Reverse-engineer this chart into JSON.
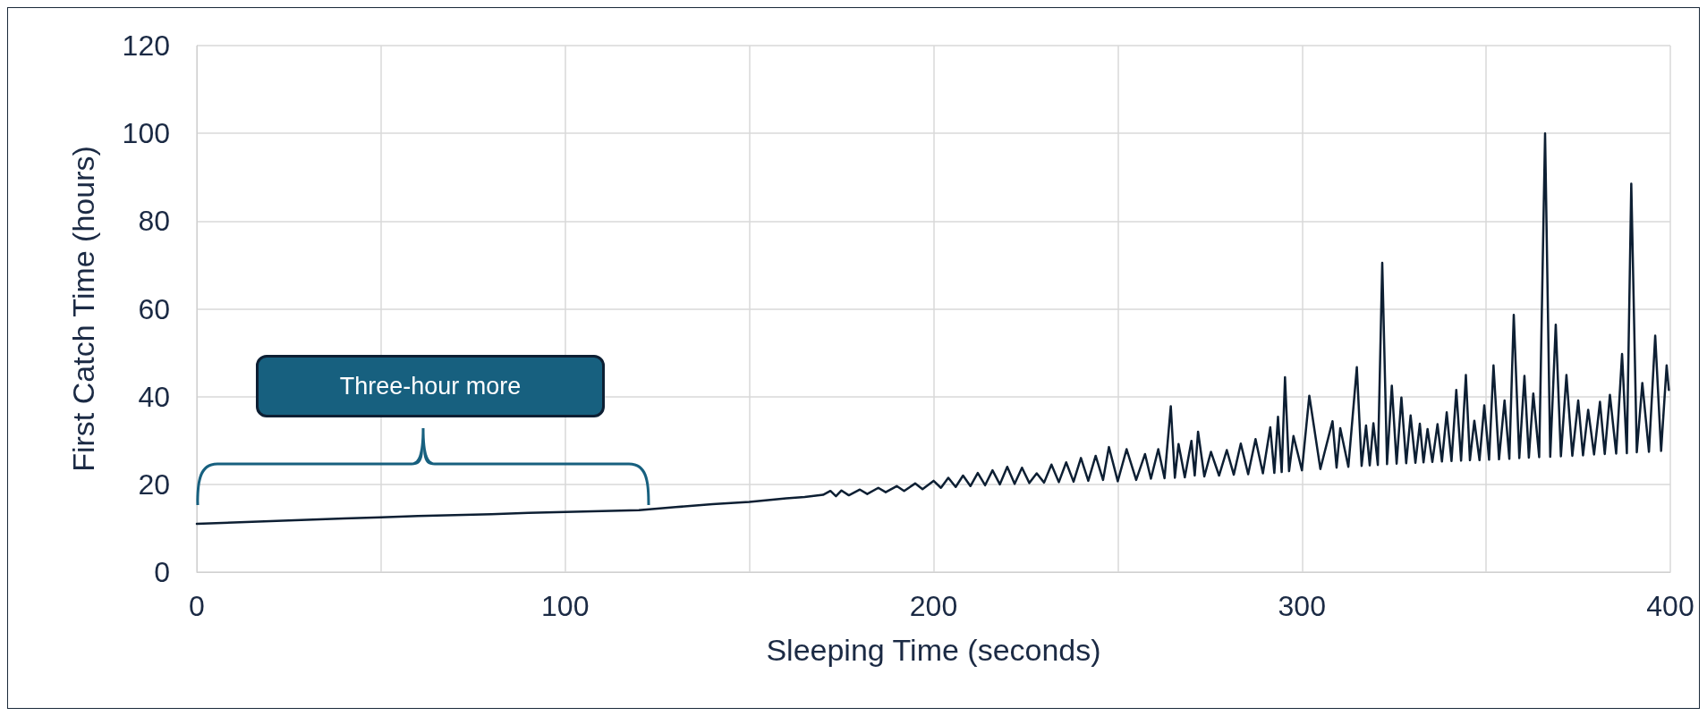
{
  "chart_data": {
    "type": "line",
    "xlabel": "Sleeping Time (seconds)",
    "ylabel": "First Catch Time (hours)",
    "xlim": [
      0,
      400
    ],
    "xticks": [
      0,
      {
        "value": 50,
        "label": null
      },
      100,
      {
        "value": 150,
        "label": null
      },
      200,
      {
        "value": 250,
        "label": null
      },
      300,
      {
        "value": 350,
        "label": null
      },
      400
    ],
    "ylim": [
      0,
      120
    ],
    "yticks": [
      0,
      20,
      40,
      60,
      80,
      100,
      120
    ],
    "grid": true,
    "marker": "none",
    "line_style": "solid",
    "annotations": [
      "Three-hour more"
    ],
    "series": [
      {
        "color": "#0d1f33",
        "x": [
          0,
          10,
          20,
          30,
          40,
          50,
          60,
          70,
          80,
          90,
          100,
          110,
          120,
          130,
          140,
          150,
          160,
          165,
          170,
          172,
          173.5,
          175,
          177,
          180,
          182,
          185,
          187,
          190,
          192,
          195,
          197,
          200,
          202,
          204,
          206,
          208,
          210,
          212,
          214,
          216,
          218,
          220,
          222,
          224,
          226,
          228,
          230,
          232,
          234,
          236,
          238,
          240,
          242,
          244,
          246,
          247.6,
          250,
          252.4,
          255,
          257.4,
          259,
          261,
          262.7,
          264.4,
          265.5,
          266.5,
          268.2,
          270,
          270.9,
          271.8,
          273.5,
          275.3,
          277.5,
          279.6,
          281.5,
          283.4,
          285.4,
          287.4,
          289.4,
          291.4,
          292.5,
          293.5,
          294.5,
          295.4,
          296.5,
          297.7,
          300,
          302,
          305,
          308.3,
          309.4,
          310.4,
          312.6,
          314.9,
          316.2,
          317.4,
          318.4,
          319.4,
          320.6,
          321.8,
          323.1,
          324.4,
          325.7,
          327,
          328.3,
          329.5,
          330.8,
          332,
          333,
          334.1,
          335.4,
          336.8,
          338,
          339.3,
          340.6,
          341.9,
          343.2,
          344.5,
          345.6,
          346.8,
          348.2,
          349.5,
          350.8,
          352,
          353.5,
          355,
          356.3,
          357.5,
          359,
          360.4,
          361.6,
          362.8,
          364.4,
          366,
          367.4,
          368.9,
          370.3,
          371.8,
          373.4,
          375,
          376.3,
          377.7,
          379.3,
          380.9,
          382.2,
          383.6,
          385.3,
          386.9,
          388.2,
          389.4,
          390.9,
          392.4,
          394.2,
          395.9,
          397.5,
          399,
          399.6
        ],
        "values": [
          11,
          11.3,
          11.6,
          11.9,
          12.2,
          12.5,
          12.8,
          13,
          13.2,
          13.5,
          13.7,
          13.9,
          14.1,
          14.8,
          15.5,
          16,
          16.8,
          17.1,
          17.6,
          18.5,
          17.3,
          18.6,
          17.5,
          18.8,
          17.8,
          19.2,
          18.2,
          19.6,
          18.5,
          20.2,
          18.9,
          20.8,
          19.2,
          21.5,
          19.4,
          22,
          19.6,
          22.6,
          19.8,
          23.2,
          20,
          24,
          20.1,
          23.8,
          20.3,
          22.5,
          20.4,
          24.5,
          20.5,
          25,
          20.6,
          26,
          20.8,
          26.5,
          21,
          28.5,
          20.7,
          28,
          21,
          26.9,
          21.3,
          28,
          21.4,
          37.8,
          21.5,
          29.2,
          21.6,
          29.9,
          22,
          32,
          21.8,
          27.4,
          22,
          27.8,
          22.2,
          29.3,
          22.3,
          30.3,
          22.5,
          33,
          22.6,
          35.4,
          22.8,
          44.4,
          23,
          31,
          23.2,
          40.2,
          23.5,
          34.4,
          23.8,
          32.8,
          24,
          46.7,
          24.2,
          33.4,
          24.3,
          33.9,
          24.4,
          70.5,
          24.6,
          42.5,
          24.7,
          39.8,
          24.8,
          35.7,
          24.9,
          33.8,
          25,
          32.6,
          25.1,
          33.7,
          25.2,
          36.4,
          25.3,
          41.5,
          25.4,
          44.9,
          25.5,
          34.5,
          25.5,
          38,
          25.6,
          47.1,
          25.7,
          39.1,
          25.8,
          58.6,
          26,
          44.7,
          26.1,
          40.7,
          26.2,
          100,
          26.3,
          56.4,
          26.4,
          44.9,
          26.5,
          39.1,
          26.6,
          37,
          26.8,
          38.8,
          26.9,
          40.4,
          27,
          49.7,
          27.1,
          88.5,
          27.3,
          43.1,
          27.4,
          53.9,
          27.6,
          47.1,
          41.5
        ]
      }
    ]
  }
}
